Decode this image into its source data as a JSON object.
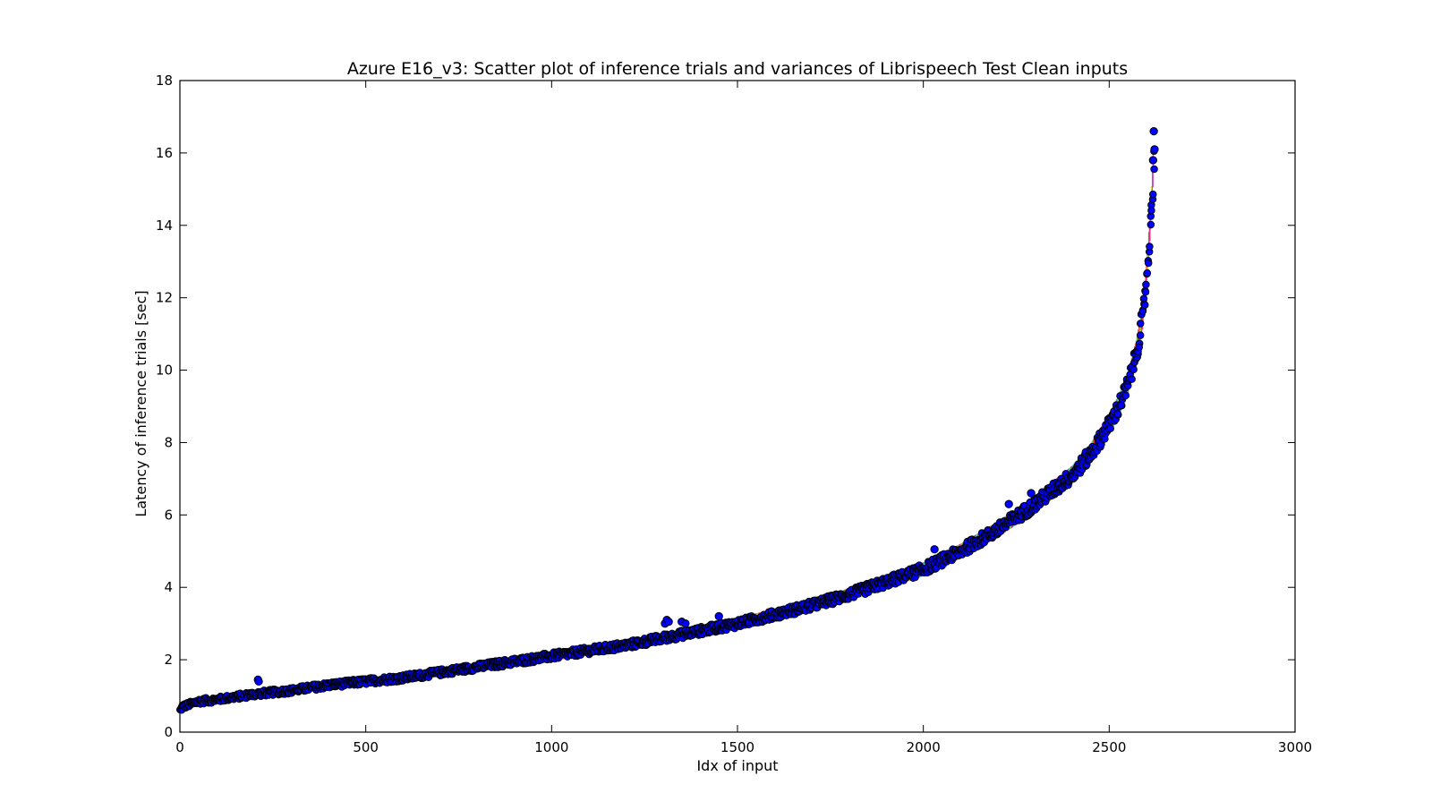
{
  "chart_data": {
    "type": "scatter",
    "title": "Azure E16_v3: Scatter plot of inference trials and variances of Librispeech Test Clean inputs",
    "xlabel": "Idx of input",
    "ylabel": "Latency of inference trials [sec]",
    "xlim": [
      0,
      3000
    ],
    "ylim": [
      0,
      18
    ],
    "xticks": [
      0,
      500,
      1000,
      1500,
      2000,
      2500,
      3000
    ],
    "yticks": [
      0,
      2,
      4,
      6,
      8,
      10,
      12,
      14,
      16,
      18
    ],
    "xtick_labels": [
      "0",
      "500",
      "1000",
      "1500",
      "2000",
      "2500",
      "3000"
    ],
    "ytick_labels": [
      "0",
      "2",
      "4",
      "6",
      "8",
      "10",
      "12",
      "14",
      "16",
      "18"
    ],
    "grid": false,
    "num_inputs": 2620,
    "marker_color": "#0000ff",
    "marker_edge_color": "#000000",
    "errorbar_colors": [
      "#ff0000",
      "#00aa00",
      "#00bfbf",
      "#bf00bf",
      "#bfbf00"
    ],
    "curve_control_points": [
      {
        "x": 0,
        "y": 0.6
      },
      {
        "x": 5,
        "y": 0.7
      },
      {
        "x": 50,
        "y": 0.85
      },
      {
        "x": 100,
        "y": 0.9
      },
      {
        "x": 200,
        "y": 1.05
      },
      {
        "x": 300,
        "y": 1.15
      },
      {
        "x": 400,
        "y": 1.3
      },
      {
        "x": 500,
        "y": 1.4
      },
      {
        "x": 600,
        "y": 1.5
      },
      {
        "x": 700,
        "y": 1.65
      },
      {
        "x": 800,
        "y": 1.8
      },
      {
        "x": 900,
        "y": 1.95
      },
      {
        "x": 1000,
        "y": 2.1
      },
      {
        "x": 1100,
        "y": 2.25
      },
      {
        "x": 1200,
        "y": 2.4
      },
      {
        "x": 1300,
        "y": 2.6
      },
      {
        "x": 1400,
        "y": 2.8
      },
      {
        "x": 1500,
        "y": 3.0
      },
      {
        "x": 1600,
        "y": 3.25
      },
      {
        "x": 1700,
        "y": 3.5
      },
      {
        "x": 1800,
        "y": 3.8
      },
      {
        "x": 1900,
        "y": 4.15
      },
      {
        "x": 2000,
        "y": 4.5
      },
      {
        "x": 2100,
        "y": 5.0
      },
      {
        "x": 2200,
        "y": 5.6
      },
      {
        "x": 2300,
        "y": 6.3
      },
      {
        "x": 2400,
        "y": 7.1
      },
      {
        "x": 2450,
        "y": 7.7
      },
      {
        "x": 2500,
        "y": 8.5
      },
      {
        "x": 2525,
        "y": 9.0
      },
      {
        "x": 2550,
        "y": 9.6
      },
      {
        "x": 2575,
        "y": 10.6
      },
      {
        "x": 2590,
        "y": 11.5
      },
      {
        "x": 2600,
        "y": 12.5
      },
      {
        "x": 2610,
        "y": 14.0
      },
      {
        "x": 2615,
        "y": 14.8
      },
      {
        "x": 2620,
        "y": 16.0
      }
    ],
    "outliers": [
      {
        "x": 210,
        "y": 1.45
      },
      {
        "x": 212,
        "y": 1.4
      },
      {
        "x": 1305,
        "y": 3.0
      },
      {
        "x": 1310,
        "y": 3.1
      },
      {
        "x": 1315,
        "y": 3.05
      },
      {
        "x": 1350,
        "y": 3.05
      },
      {
        "x": 1360,
        "y": 3.0
      },
      {
        "x": 1450,
        "y": 3.2
      },
      {
        "x": 2030,
        "y": 5.05
      },
      {
        "x": 2230,
        "y": 6.3
      },
      {
        "x": 2290,
        "y": 6.6
      },
      {
        "x": 2620,
        "y": 16.6
      },
      {
        "x": 2622,
        "y": 16.1
      },
      {
        "x": 2618,
        "y": 15.8
      }
    ]
  }
}
